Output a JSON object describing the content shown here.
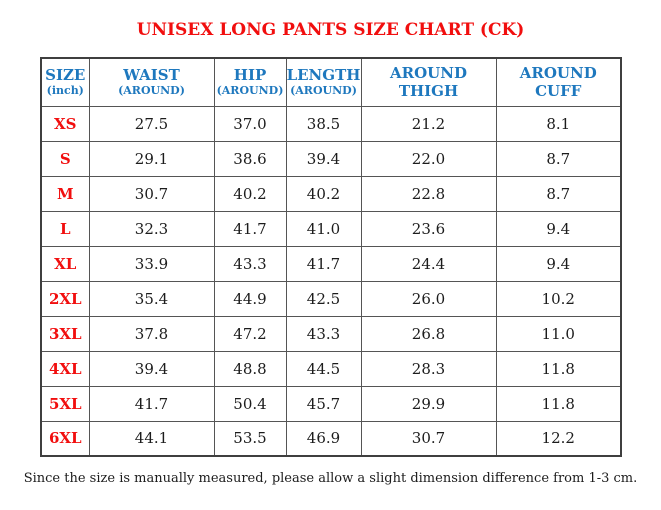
{
  "colors": {
    "title_red": "#f10e0e",
    "header_blue": "#1e78be",
    "border_dark": "#3f3f3f",
    "border_mid": "#555555"
  },
  "title": "UNISEX LONG PANTS SIZE CHART (CK)",
  "table": {
    "headers": [
      {
        "line1": "SIZE",
        "line2": "(inch)"
      },
      {
        "line1": "WAIST",
        "line2": "(AROUND)"
      },
      {
        "line1": "HIP",
        "line2": "(AROUND)"
      },
      {
        "line1": "LENGTH",
        "line2": "(AROUND)"
      },
      {
        "line1": "AROUND",
        "line2": "THIGH"
      },
      {
        "line1": "AROUND",
        "line2": "CUFF"
      }
    ],
    "rows": [
      {
        "size": "XS",
        "values": [
          "27.5",
          "37.0",
          "38.5",
          "21.2",
          "8.1"
        ]
      },
      {
        "size": "S",
        "values": [
          "29.1",
          "38.6",
          "39.4",
          "22.0",
          "8.7"
        ]
      },
      {
        "size": "M",
        "values": [
          "30.7",
          "40.2",
          "40.2",
          "22.8",
          "8.7"
        ]
      },
      {
        "size": "L",
        "values": [
          "32.3",
          "41.7",
          "41.0",
          "23.6",
          "9.4"
        ]
      },
      {
        "size": "XL",
        "values": [
          "33.9",
          "43.3",
          "41.7",
          "24.4",
          "9.4"
        ]
      },
      {
        "size": "2XL",
        "values": [
          "35.4",
          "44.9",
          "42.5",
          "26.0",
          "10.2"
        ]
      },
      {
        "size": "3XL",
        "values": [
          "37.8",
          "47.2",
          "43.3",
          "26.8",
          "11.0"
        ]
      },
      {
        "size": "4XL",
        "values": [
          "39.4",
          "48.8",
          "44.5",
          "28.3",
          "11.8"
        ]
      },
      {
        "size": "5XL",
        "values": [
          "41.7",
          "50.4",
          "45.7",
          "29.9",
          "11.8"
        ]
      },
      {
        "size": "6XL",
        "values": [
          "44.1",
          "53.5",
          "46.9",
          "30.7",
          "12.2"
        ]
      }
    ]
  },
  "footer_note": "Since the size is manually measured, please allow a slight dimension difference from 1-3 cm."
}
